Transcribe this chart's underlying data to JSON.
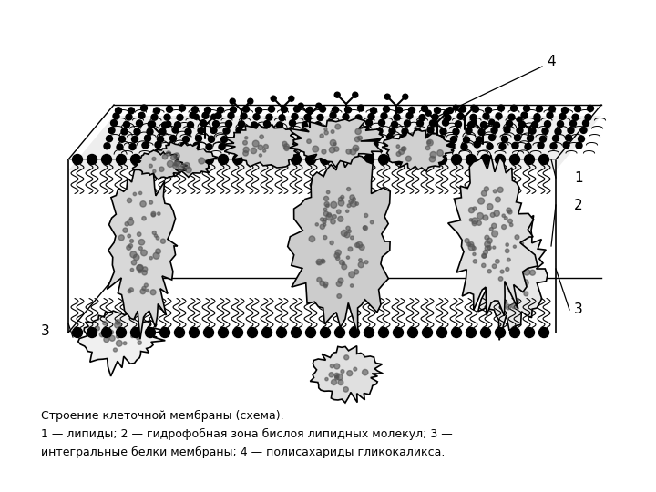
{
  "caption_line1": "Строение клеточной мембраны (схема).",
  "caption_line2": "1 — липиды; 2 — гидрофобная зона бислоя липидных молекул; 3 —",
  "caption_line3": "интегральные белки мембраны; 4 — полисахариды гликокаликса.",
  "bg_color": "#ffffff",
  "font_size_labels": 11,
  "font_size_caption": 9.0
}
